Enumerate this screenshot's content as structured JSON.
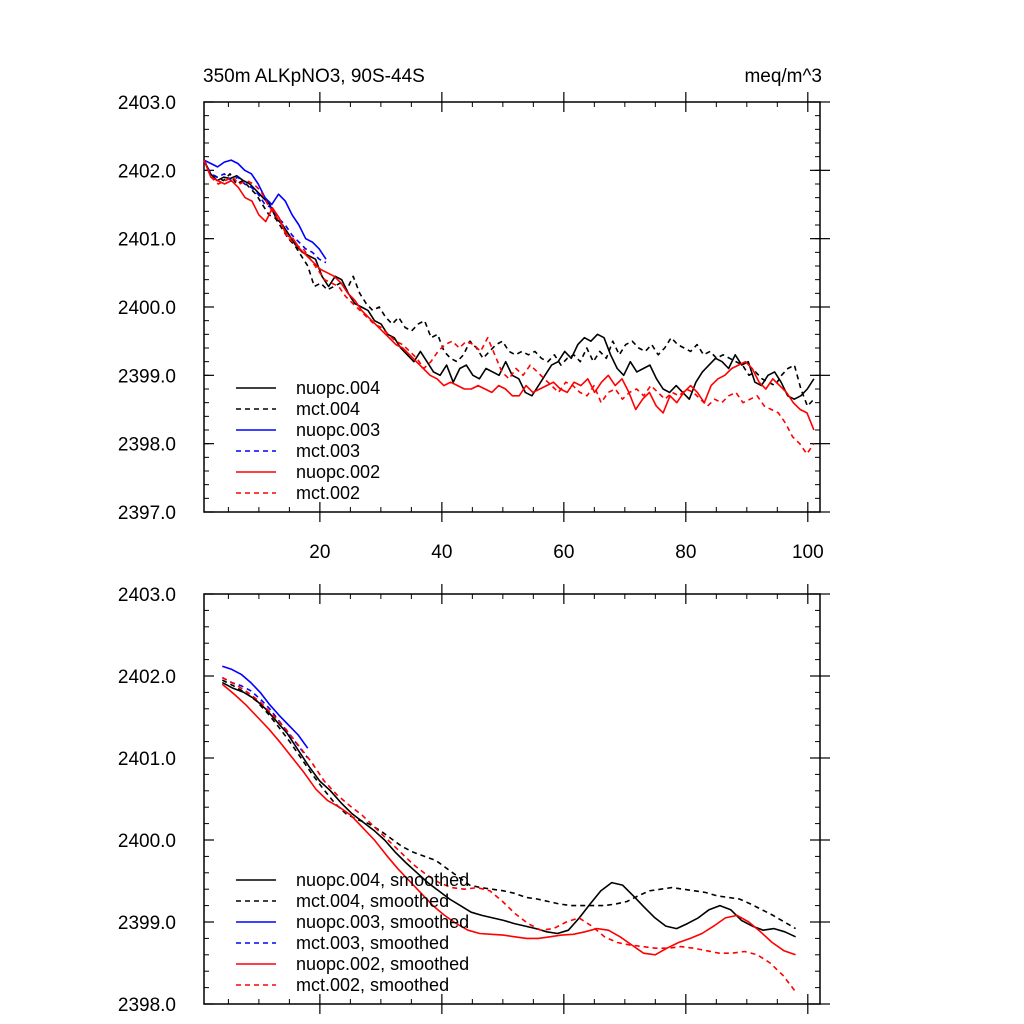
{
  "chart_data": [
    {
      "type": "line",
      "title": "350m ALKpNO3, 90S-44S",
      "units": "meq/m^3",
      "xlim": [
        1,
        102
      ],
      "ylim": [
        2397.0,
        2403.0
      ],
      "xticks": [
        20,
        40,
        60,
        80,
        100
      ],
      "yticks": [
        "2397.0",
        "2398.0",
        "2399.0",
        "2400.0",
        "2401.0",
        "2402.0",
        "2403.0"
      ],
      "legend_position": "bottom-left",
      "series": [
        {
          "name": "nuopc.004",
          "color": "#000000",
          "dash": "solid",
          "start": 1,
          "values": [
            2402.15,
            2401.95,
            2401.85,
            2401.9,
            2401.88,
            2401.92,
            2401.85,
            2401.8,
            2401.7,
            2401.6,
            2401.5,
            2401.3,
            2401.2,
            2401.05,
            2400.9,
            2400.8,
            2400.75,
            2400.7,
            2400.45,
            2400.3,
            2400.45,
            2400.4,
            2400.2,
            2400.05,
            2400.0,
            2399.95,
            2399.8,
            2399.75,
            2399.6,
            2399.55,
            2399.4,
            2399.3,
            2399.2,
            2399.35,
            2399.2,
            2399.05,
            2399.0,
            2399.15,
            2398.9,
            2399.1,
            2399.15,
            2399.0,
            2398.95,
            2399.1,
            2399.05,
            2399.0,
            2399.2,
            2399.0,
            2398.95,
            2398.75,
            2398.7,
            2398.85,
            2399.0,
            2399.15,
            2399.2,
            2399.35,
            2399.25,
            2399.45,
            2399.55,
            2399.5,
            2399.6,
            2399.55,
            2399.3,
            2399.1,
            2399.0,
            2399.2,
            2399.05,
            2399.1,
            2399.15,
            2398.95,
            2398.8,
            2398.75,
            2398.85,
            2398.75,
            2398.65,
            2398.9,
            2399.05,
            2399.15,
            2399.25,
            2399.2,
            2399.1,
            2399.3,
            2399.15,
            2399.2,
            2398.9,
            2398.85,
            2399.0,
            2399.05,
            2398.9,
            2398.7,
            2398.65,
            2398.7,
            2398.8,
            2398.95
          ],
          "x_end": 101
        },
        {
          "name": "mct.004",
          "color": "#000000",
          "dash": "dashed",
          "start": 1,
          "values": [
            2402.15,
            2401.95,
            2401.9,
            2401.85,
            2401.95,
            2401.8,
            2401.85,
            2401.75,
            2401.65,
            2401.5,
            2401.35,
            2401.3,
            2401.15,
            2401.0,
            2400.9,
            2400.75,
            2400.6,
            2400.3,
            2400.35,
            2400.25,
            2400.3,
            2400.35,
            2400.25,
            2400.45,
            2400.2,
            2400.05,
            2399.95,
            2400.0,
            2399.85,
            2399.75,
            2399.85,
            2399.7,
            2399.65,
            2399.75,
            2399.8,
            2399.55,
            2399.6,
            2399.35,
            2399.25,
            2399.2,
            2399.3,
            2399.5,
            2399.4,
            2399.25,
            2399.35,
            2399.45,
            2399.5,
            2399.35,
            2399.3,
            2399.35,
            2399.3,
            2399.35,
            2399.25,
            2399.2,
            2399.3,
            2399.15,
            2399.25,
            2399.3,
            2399.2,
            2399.4,
            2399.2,
            2399.35,
            2399.25,
            2399.5,
            2399.3,
            2399.45,
            2399.5,
            2399.4,
            2399.35,
            2399.45,
            2399.3,
            2399.4,
            2399.55,
            2399.45,
            2399.4,
            2399.35,
            2399.45,
            2399.3,
            2399.35,
            2399.25,
            2399.3,
            2399.25,
            2399.2,
            2399.15,
            2399.0,
            2399.05,
            2398.95,
            2398.9,
            2398.85,
            2399.0,
            2399.1,
            2399.15,
            2398.8,
            2398.55,
            2398.65
          ],
          "x_end": 101
        },
        {
          "name": "nuopc.003",
          "color": "#0000ff",
          "dash": "solid",
          "start": 1,
          "values": [
            2402.15,
            2402.1,
            2402.05,
            2402.12,
            2402.15,
            2402.1,
            2402.0,
            2401.95,
            2401.8,
            2401.6,
            2401.5,
            2401.65,
            2401.55,
            2401.35,
            2401.2,
            2401.0,
            2400.95,
            2400.85,
            2400.7
          ],
          "x_end": 21
        },
        {
          "name": "mct.003",
          "color": "#0000ff",
          "dash": "dashed",
          "start": 1,
          "values": [
            2402.15,
            2401.95,
            2401.9,
            2401.95,
            2401.85,
            2401.9,
            2401.8,
            2401.75,
            2401.65,
            2401.5,
            2401.45,
            2401.3,
            2401.2,
            2401.05,
            2400.95,
            2400.85,
            2400.8,
            2400.7,
            2400.65
          ],
          "x_end": 21
        },
        {
          "name": "nuopc.002",
          "color": "#ff0000",
          "dash": "solid",
          "start": 1,
          "values": [
            2402.15,
            2401.9,
            2401.85,
            2401.8,
            2401.85,
            2401.75,
            2401.6,
            2401.55,
            2401.35,
            2401.25,
            2401.45,
            2401.3,
            2401.05,
            2401.0,
            2400.85,
            2400.75,
            2400.65,
            2400.55,
            2400.5,
            2400.45,
            2400.35,
            2400.2,
            2400.1,
            2399.95,
            2399.85,
            2399.75,
            2399.65,
            2399.55,
            2399.45,
            2399.4,
            2399.3,
            2399.2,
            2399.1,
            2399.0,
            2398.95,
            2398.85,
            2398.9,
            2398.85,
            2398.8,
            2398.8,
            2398.85,
            2398.8,
            2398.75,
            2398.85,
            2398.8,
            2398.7,
            2398.7,
            2398.85,
            2398.75,
            2398.8,
            2398.85,
            2398.9,
            2398.8,
            2398.75,
            2398.9,
            2398.85,
            2398.95,
            2398.75,
            2398.9,
            2399.0,
            2398.85,
            2398.95,
            2398.75,
            2398.5,
            2398.65,
            2398.75,
            2398.55,
            2398.45,
            2398.7,
            2398.6,
            2398.75,
            2398.85,
            2398.75,
            2398.6,
            2398.85,
            2398.95,
            2399.0,
            2399.1,
            2399.15,
            2399.2,
            2399.1,
            2398.9,
            2398.8,
            2398.95,
            2398.85,
            2398.75,
            2398.6,
            2398.5,
            2398.45,
            2398.2
          ],
          "x_end": 101
        },
        {
          "name": "mct.002",
          "color": "#ff0000",
          "dash": "dashed",
          "start": 1,
          "values": [
            2402.15,
            2401.9,
            2401.8,
            2401.85,
            2401.9,
            2401.8,
            2401.85,
            2401.8,
            2401.7,
            2401.5,
            2401.35,
            2401.2,
            2401.0,
            2400.9,
            2400.85,
            2400.7,
            2400.55,
            2400.4,
            2400.35,
            2400.3,
            2400.15,
            2400.05,
            2399.95,
            2399.85,
            2399.75,
            2399.7,
            2399.6,
            2399.5,
            2399.45,
            2399.35,
            2399.25,
            2399.1,
            2399.2,
            2399.35,
            2399.45,
            2399.5,
            2399.4,
            2399.5,
            2399.45,
            2399.35,
            2399.55,
            2399.3,
            2399.05,
            2398.95,
            2399.1,
            2399.0,
            2399.15,
            2399.05,
            2398.95,
            2398.85,
            2398.75,
            2398.9,
            2398.85,
            2398.75,
            2398.7,
            2398.85,
            2398.6,
            2398.75,
            2398.8,
            2398.65,
            2398.75,
            2398.8,
            2398.7,
            2398.85,
            2398.75,
            2398.65,
            2398.75,
            2398.7,
            2398.8,
            2398.75,
            2398.65,
            2398.55,
            2398.65,
            2398.6,
            2398.7,
            2398.75,
            2398.6,
            2398.65,
            2398.7,
            2398.55,
            2398.5,
            2398.45,
            2398.3,
            2398.1,
            2398.0,
            2397.85,
            2398.0
          ],
          "x_end": 101
        }
      ]
    },
    {
      "type": "line",
      "title": "",
      "xlim": [
        1,
        102
      ],
      "ylim": [
        2398.0,
        2403.0
      ],
      "xticks": [
        20,
        40,
        60,
        80,
        100
      ],
      "yticks": [
        "2398.0",
        "2399.0",
        "2400.0",
        "2401.0",
        "2402.0",
        "2403.0"
      ],
      "legend_position": "bottom-left",
      "series": [
        {
          "name": "nuopc.004, smoothed",
          "color": "#000000",
          "dash": "solid",
          "start": 4,
          "x_end": 98,
          "values": [
            2401.92,
            2401.85,
            2401.8,
            2401.72,
            2401.6,
            2401.45,
            2401.3,
            2401.1,
            2400.9,
            2400.72,
            2400.6,
            2400.45,
            2400.32,
            2400.22,
            2400.12,
            2400.0,
            2399.85,
            2399.72,
            2399.6,
            2399.48,
            2399.38,
            2399.28,
            2399.2,
            2399.12,
            2399.08,
            2399.05,
            2399.02,
            2398.98,
            2398.95,
            2398.92,
            2398.88,
            2398.86,
            2398.9,
            2399.05,
            2399.22,
            2399.38,
            2399.48,
            2399.45,
            2399.32,
            2399.18,
            2399.05,
            2398.95,
            2398.92,
            2398.98,
            2399.05,
            2399.15,
            2399.2,
            2399.15,
            2399.02,
            2398.95,
            2398.9,
            2398.92,
            2398.88,
            2398.82
          ]
        },
        {
          "name": "mct.004, smoothed",
          "color": "#000000",
          "dash": "dashed",
          "start": 4,
          "x_end": 98,
          "values": [
            2401.95,
            2401.88,
            2401.8,
            2401.7,
            2401.55,
            2401.38,
            2401.2,
            2401.0,
            2400.8,
            2400.62,
            2400.45,
            2400.32,
            2400.25,
            2400.2,
            2400.12,
            2400.02,
            2399.92,
            2399.85,
            2399.8,
            2399.75,
            2399.65,
            2399.55,
            2399.45,
            2399.42,
            2399.4,
            2399.38,
            2399.35,
            2399.3,
            2399.28,
            2399.25,
            2399.22,
            2399.2,
            2399.2,
            2399.2,
            2399.2,
            2399.22,
            2399.25,
            2399.32,
            2399.38,
            2399.4,
            2399.42,
            2399.4,
            2399.38,
            2399.36,
            2399.32,
            2399.3,
            2399.28,
            2399.22,
            2399.15,
            2399.08,
            2399.0,
            2398.92
          ]
        },
        {
          "name": "nuopc.003, smoothed",
          "color": "#0000ff",
          "dash": "solid",
          "start": 4,
          "x_end": 18,
          "values": [
            2402.12,
            2402.08,
            2402.02,
            2401.92,
            2401.8,
            2401.65,
            2401.52,
            2401.4,
            2401.28,
            2401.12
          ]
        },
        {
          "name": "mct.003, smoothed",
          "color": "#0000ff",
          "dash": "dashed",
          "start": 4,
          "x_end": 18,
          "values": [
            2401.98,
            2401.92,
            2401.88,
            2401.82,
            2401.72,
            2401.6,
            2401.45,
            2401.3,
            2401.15,
            2401.0
          ]
        },
        {
          "name": "nuopc.002, smoothed",
          "color": "#ff0000",
          "dash": "solid",
          "start": 4,
          "x_end": 98,
          "values": [
            2401.9,
            2401.78,
            2401.65,
            2401.5,
            2401.35,
            2401.18,
            2401.0,
            2400.82,
            2400.62,
            2400.48,
            2400.4,
            2400.3,
            2400.15,
            2400.0,
            2399.82,
            2399.65,
            2399.5,
            2399.35,
            2399.2,
            2399.08,
            2398.98,
            2398.9,
            2398.86,
            2398.85,
            2398.84,
            2398.82,
            2398.8,
            2398.8,
            2398.82,
            2398.84,
            2398.85,
            2398.88,
            2398.92,
            2398.9,
            2398.82,
            2398.72,
            2398.62,
            2398.6,
            2398.68,
            2398.75,
            2398.8,
            2398.86,
            2398.95,
            2399.05,
            2399.08,
            2399.0,
            2398.88,
            2398.75,
            2398.65,
            2398.6
          ]
        },
        {
          "name": "mct.002, smoothed",
          "color": "#ff0000",
          "dash": "dashed",
          "start": 4,
          "x_end": 98,
          "values": [
            2401.98,
            2401.9,
            2401.8,
            2401.68,
            2401.52,
            2401.35,
            2401.15,
            2400.95,
            2400.72,
            2400.55,
            2400.42,
            2400.3,
            2400.15,
            2400.0,
            2399.85,
            2399.7,
            2399.58,
            2399.48,
            2399.42,
            2399.4,
            2399.42,
            2399.38,
            2399.25,
            2399.1,
            2398.98,
            2398.9,
            2398.92,
            2399.0,
            2399.05,
            2398.95,
            2398.82,
            2398.75,
            2398.72,
            2398.7,
            2398.68,
            2398.68,
            2398.7,
            2398.68,
            2398.65,
            2398.62,
            2398.62,
            2398.64,
            2398.6,
            2398.5,
            2398.35,
            2398.15
          ]
        }
      ]
    }
  ]
}
